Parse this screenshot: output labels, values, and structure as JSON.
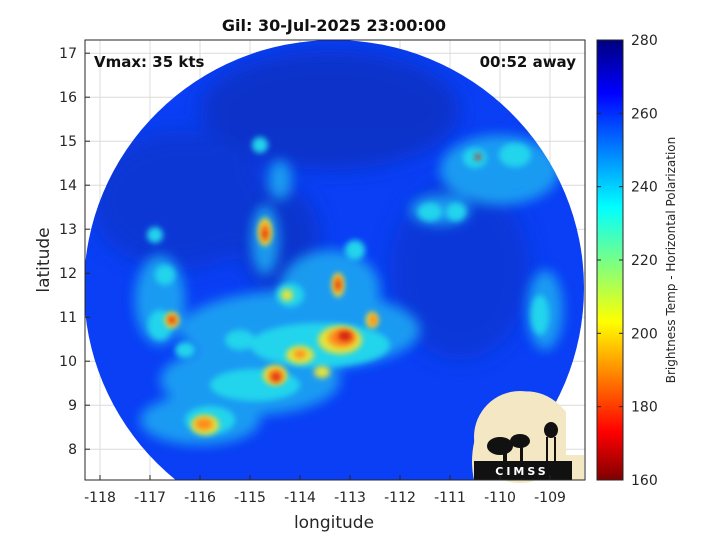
{
  "title": "Gil: 30-Jul-2025 23:00:00",
  "vmax_text": "Vmax: 35 kts",
  "away_text": "00:52 away",
  "xlabel": "longitude",
  "ylabel": "latitude",
  "x_ticks": [
    "-118",
    "-117",
    "-116",
    "-115",
    "-114",
    "-113",
    "-112",
    "-111",
    "-110",
    "-109"
  ],
  "y_ticks": [
    "8",
    "9",
    "10",
    "11",
    "12",
    "13",
    "14",
    "15",
    "16",
    "17"
  ],
  "colorbar": {
    "label": "Brightness Temp - Horizontal Polarization",
    "ticks": [
      "160",
      "180",
      "200",
      "220",
      "240",
      "260",
      "280"
    ],
    "colormap": "jet",
    "range": [
      160,
      280
    ]
  },
  "logo_text": "CIMSS",
  "colors": {
    "background_field": "#0a3ff5",
    "deep_blue": "#0c2fb8",
    "cyan": "#19c8ea",
    "yellow": "#e9e335",
    "red": "#d41b0f"
  }
}
